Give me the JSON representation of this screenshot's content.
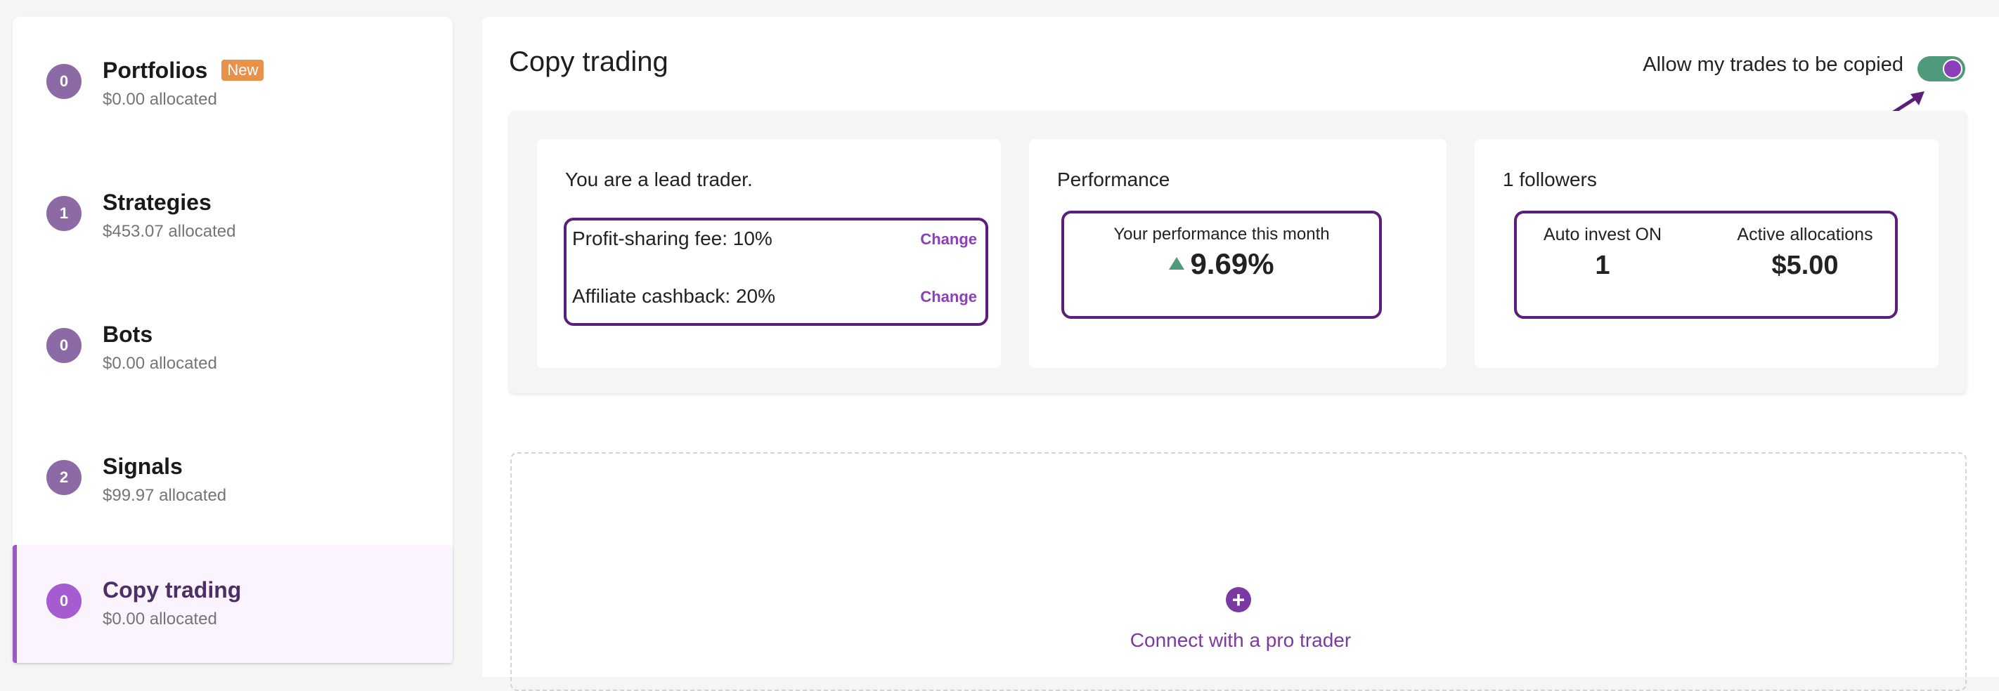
{
  "sidebar": {
    "items": [
      {
        "badge": "0",
        "title": "Portfolios",
        "tag": "New",
        "sub": "$0.00 allocated"
      },
      {
        "badge": "1",
        "title": "Strategies",
        "sub": "$453.07 allocated"
      },
      {
        "badge": "0",
        "title": "Bots",
        "sub": "$0.00 allocated"
      },
      {
        "badge": "2",
        "title": "Signals",
        "sub": "$99.97 allocated"
      },
      {
        "badge": "0",
        "title": "Copy trading",
        "sub": "$0.00 allocated"
      }
    ]
  },
  "main": {
    "title": "Copy trading",
    "allow_label": "Allow my trades to be copied",
    "allow_toggle_on": true,
    "lead_card": {
      "heading": "You are a lead trader.",
      "fee_label": "Profit-sharing fee: 10%",
      "cashback_label": "Affiliate cashback: 20%",
      "change_label": "Change"
    },
    "perf_card": {
      "heading": "Performance",
      "label": "Your performance this month",
      "value": "9.69%"
    },
    "followers_card": {
      "heading": "1 followers",
      "auto_label": "Auto invest ON",
      "auto_value": "1",
      "alloc_label": "Active allocations",
      "alloc_value": "$5.00"
    },
    "connect_label": "Connect with a pro trader"
  },
  "colors": {
    "accent": "#7b3aa3",
    "outline": "#5b1e7a",
    "toggle_on": "#4e9a7a",
    "new_tag": "#e8914a"
  }
}
